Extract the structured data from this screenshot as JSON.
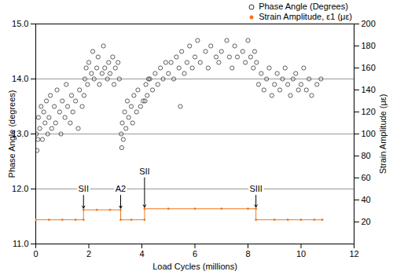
{
  "chart_data": {
    "type": "scatter",
    "xlabel": "Load Cycles (millions)",
    "ylabel": "Phase Angle (degrees)",
    "y2label": "Strain Amplitude (με)",
    "xlim": [
      0,
      12
    ],
    "xticks": [
      0,
      2,
      4,
      6,
      8,
      10,
      12
    ],
    "ylim": [
      11,
      15
    ],
    "yticks": [
      11,
      12,
      13,
      14,
      15
    ],
    "y2lim": [
      0,
      200
    ],
    "y2ticks": [
      20,
      40,
      60,
      80,
      100,
      120,
      140,
      160,
      180,
      200
    ],
    "grid": true,
    "legend": "top-right",
    "series": [
      {
        "name": "Phase Angle (Degrees)",
        "type": "scatter",
        "marker": "open-circle",
        "color": "#333333",
        "x": [
          0.02,
          0.05,
          0.08,
          0.1,
          0.15,
          0.2,
          0.25,
          0.3,
          0.35,
          0.4,
          0.45,
          0.5,
          0.55,
          0.6,
          0.7,
          0.75,
          0.8,
          0.9,
          0.95,
          1.0,
          1.1,
          1.15,
          1.2,
          1.3,
          1.35,
          1.4,
          1.5,
          1.6,
          1.65,
          1.75,
          1.82,
          1.85,
          1.9,
          1.95,
          2.0,
          2.1,
          2.15,
          2.2,
          2.3,
          2.35,
          2.4,
          2.5,
          2.55,
          2.6,
          2.7,
          2.75,
          2.8,
          2.9,
          2.95,
          3.0,
          3.1,
          3.15,
          3.22,
          3.24,
          3.26,
          3.3,
          3.35,
          3.4,
          3.45,
          3.5,
          3.6,
          3.65,
          3.7,
          3.8,
          3.85,
          3.95,
          4.05,
          4.12,
          4.15,
          4.2,
          4.3,
          4.4,
          4.5,
          4.6,
          4.7,
          4.8,
          4.9,
          5.0,
          5.1,
          5.2,
          5.3,
          5.4,
          5.5,
          5.6,
          5.7,
          5.8,
          5.9,
          6.0,
          6.1,
          6.2,
          6.4,
          6.5,
          6.6,
          6.8,
          6.9,
          7.0,
          7.2,
          7.3,
          7.4,
          7.5,
          7.6,
          7.8,
          7.9,
          8.0,
          8.1,
          8.2,
          8.25,
          4.25,
          5.45,
          8.32,
          8.4,
          8.5,
          8.6,
          8.7,
          8.8,
          8.9,
          9.0,
          9.1,
          9.2,
          9.3,
          9.4,
          9.5,
          9.6,
          9.7,
          9.8,
          9.9,
          10.0,
          10.1,
          10.2,
          10.3,
          10.4,
          10.6,
          10.75
        ],
        "values": [
          13.0,
          12.7,
          12.9,
          13.3,
          13.1,
          13.5,
          12.9,
          13.4,
          13.2,
          13.6,
          13.0,
          13.3,
          13.7,
          13.1,
          13.5,
          13.2,
          13.8,
          13.4,
          13.0,
          13.6,
          13.3,
          13.9,
          13.5,
          13.2,
          13.7,
          13.4,
          13.6,
          13.1,
          13.8,
          13.5,
          13.7,
          14.0,
          14.2,
          13.9,
          14.3,
          14.1,
          14.5,
          14.0,
          14.2,
          14.4,
          13.9,
          14.1,
          14.6,
          14.2,
          14.0,
          14.3,
          14.1,
          14.4,
          13.9,
          14.2,
          14.3,
          14.0,
          13.0,
          12.75,
          13.2,
          12.9,
          13.4,
          13.1,
          13.6,
          13.3,
          13.5,
          13.2,
          13.7,
          13.4,
          13.8,
          13.5,
          13.6,
          13.6,
          13.9,
          13.7,
          14.0,
          13.8,
          14.1,
          13.9,
          14.2,
          14.0,
          14.3,
          14.1,
          14.3,
          14.0,
          14.4,
          14.2,
          14.5,
          14.1,
          14.3,
          14.6,
          14.2,
          14.4,
          14.7,
          14.3,
          14.5,
          14.2,
          14.6,
          14.4,
          14.3,
          14.5,
          14.7,
          14.4,
          14.2,
          14.6,
          14.4,
          14.5,
          14.3,
          14.7,
          14.4,
          14.2,
          14.5,
          14.0,
          13.5,
          14.3,
          13.9,
          14.1,
          13.8,
          14.0,
          14.2,
          13.7,
          13.9,
          14.1,
          13.8,
          14.0,
          14.2,
          13.9,
          13.7,
          14.0,
          14.1,
          13.8,
          13.9,
          14.2,
          13.8,
          14.0,
          13.7,
          13.9,
          14.0
        ]
      },
      {
        "name": "Strain Amplitude, ε1 (με)",
        "type": "line",
        "marker": "dot",
        "color": "#f07820",
        "axis": "y2",
        "x": [
          0,
          0.5,
          1.0,
          1.5,
          1.8,
          1.8,
          2.3,
          2.8,
          3.2,
          3.2,
          3.6,
          4.1,
          4.1,
          5,
          6,
          7,
          8,
          8.3,
          8.3,
          9,
          9.5,
          10,
          10.5,
          10.8
        ],
        "values": [
          22,
          22,
          22,
          22,
          22,
          31,
          31,
          31,
          31,
          22,
          22,
          22,
          32,
          32,
          32,
          32,
          32,
          32,
          22,
          22,
          22,
          22,
          22,
          22
        ]
      }
    ],
    "annotations": [
      {
        "text": "SII",
        "x": 1.8,
        "y": 50
      },
      {
        "text": "A2",
        "x": 3.2,
        "y": 50
      },
      {
        "text": "SII",
        "x": 4.1,
        "y": 66
      },
      {
        "text": "SIII",
        "x": 8.3,
        "y": 50
      }
    ]
  }
}
